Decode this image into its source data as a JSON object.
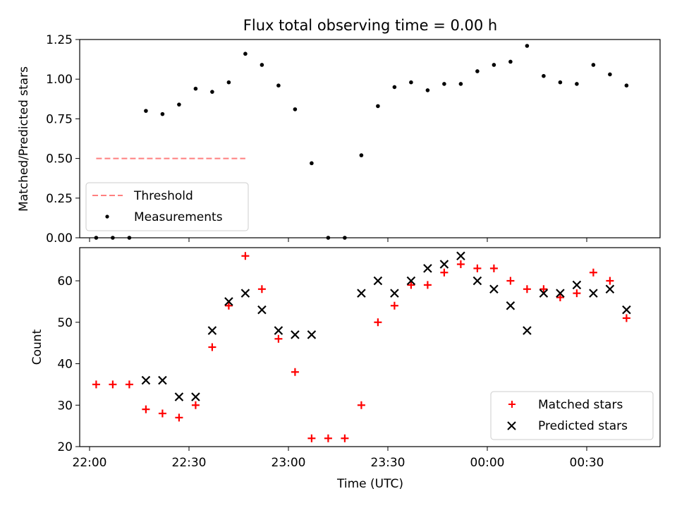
{
  "chart_data": [
    {
      "type": "scatter",
      "title": "Flux total observing time = 0.00 h",
      "xlabel": "",
      "ylabel": "Matched/Predicted stars",
      "ylim": [
        0,
        1.25
      ],
      "yticks": [
        "0.00",
        "0.25",
        "0.50",
        "0.75",
        "1.00",
        "1.25"
      ],
      "legend_position": "lower-left",
      "series": [
        {
          "name": "Threshold",
          "style": "dashed-line",
          "color": "#ff7f7f",
          "x": [
            "22:02",
            "22:47"
          ],
          "y": [
            0.5,
            0.5
          ]
        },
        {
          "name": "Measurements",
          "style": "dot",
          "color": "#000000",
          "x": [
            "22:02",
            "22:07",
            "22:12",
            "22:17",
            "22:22",
            "22:27",
            "22:32",
            "22:37",
            "22:42",
            "22:47",
            "22:52",
            "22:57",
            "23:02",
            "23:07",
            "23:12",
            "23:17",
            "23:22",
            "23:27",
            "23:32",
            "23:37",
            "23:42",
            "23:47",
            "23:52",
            "23:57",
            "00:02",
            "00:07",
            "00:12",
            "00:17",
            "00:22",
            "00:27",
            "00:32",
            "00:37",
            "00:42"
          ],
          "y": [
            0.0,
            0.0,
            0.0,
            0.8,
            0.78,
            0.84,
            0.94,
            0.92,
            0.98,
            1.16,
            1.09,
            0.96,
            0.81,
            0.47,
            0.0,
            0.0,
            0.52,
            0.83,
            0.95,
            0.98,
            0.93,
            0.97,
            0.97,
            1.05,
            1.09,
            1.11,
            1.21,
            1.02,
            0.98,
            0.97,
            1.09,
            1.03,
            0.96
          ]
        }
      ]
    },
    {
      "type": "scatter",
      "xlabel": "Time (UTC)",
      "ylabel": "Count",
      "ylim": [
        20,
        68
      ],
      "yticks": [
        "20",
        "30",
        "40",
        "50",
        "60"
      ],
      "xticks": [
        "22:00",
        "22:30",
        "23:00",
        "23:30",
        "00:00",
        "00:30"
      ],
      "legend_position": "lower-right",
      "series": [
        {
          "name": "Matched stars",
          "marker": "+",
          "color": "#ff0000",
          "x": [
            "22:02",
            "22:07",
            "22:12",
            "22:17",
            "22:22",
            "22:27",
            "22:32",
            "22:37",
            "22:42",
            "22:47",
            "22:52",
            "22:57",
            "23:02",
            "23:07",
            "23:12",
            "23:17",
            "23:22",
            "23:27",
            "23:32",
            "23:37",
            "23:42",
            "23:47",
            "23:52",
            "23:57",
            "00:02",
            "00:07",
            "00:12",
            "00:17",
            "00:22",
            "00:27",
            "00:32",
            "00:37",
            "00:42"
          ],
          "y": [
            35,
            35,
            35,
            29,
            28,
            27,
            30,
            44,
            54,
            66,
            58,
            46,
            38,
            22,
            22,
            22,
            30,
            50,
            54,
            59,
            59,
            62,
            64,
            63,
            63,
            60,
            58,
            58,
            56,
            57,
            62,
            60,
            51
          ]
        },
        {
          "name": "Predicted stars",
          "marker": "x",
          "color": "#000000",
          "x": [
            "22:17",
            "22:22",
            "22:27",
            "22:32",
            "22:37",
            "22:42",
            "22:47",
            "22:52",
            "22:57",
            "23:02",
            "23:07",
            "23:22",
            "23:27",
            "23:32",
            "23:37",
            "23:42",
            "23:47",
            "23:52",
            "23:57",
            "00:02",
            "00:07",
            "00:12",
            "00:17",
            "00:22",
            "00:27",
            "00:32",
            "00:37",
            "00:42"
          ],
          "y": [
            36,
            36,
            32,
            32,
            48,
            55,
            57,
            53,
            48,
            47,
            47,
            57,
            60,
            57,
            60,
            63,
            64,
            66,
            60,
            58,
            54,
            48,
            57,
            57,
            59,
            57,
            58,
            53
          ]
        }
      ]
    }
  ]
}
